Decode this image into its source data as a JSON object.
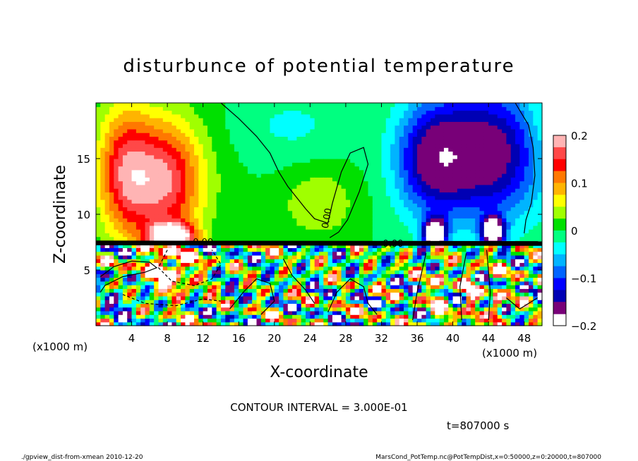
{
  "chart_data": {
    "type": "heatmap",
    "title": "disturbunce of potential temperature",
    "xlabel": "X-coordinate",
    "ylabel": "Z-coordinate",
    "x_unit_left": "(x1000 m)",
    "x_unit_right": "(x1000 m)",
    "xlim": [
      0,
      50
    ],
    "ylim": [
      0,
      20
    ],
    "x_ticks": [
      4,
      8,
      12,
      16,
      20,
      24,
      28,
      32,
      36,
      40,
      44,
      48
    ],
    "y_ticks": [
      5,
      10,
      15
    ],
    "colorbar": {
      "range": [
        -0.2,
        0.2
      ],
      "ticks": [
        {
          "value": 0.2,
          "label": "0.2"
        },
        {
          "value": 0.1,
          "label": "0.1"
        },
        {
          "value": 0.0,
          "label": "0"
        },
        {
          "value": -0.1,
          "label": "−0.1"
        },
        {
          "value": -0.2,
          "label": "−0.2"
        }
      ],
      "levels": [
        {
          "low": 0.175,
          "color": "#ffb4b4"
        },
        {
          "low": 0.15,
          "color": "#ff4848"
        },
        {
          "low": 0.125,
          "color": "#ff0000"
        },
        {
          "low": 0.1,
          "color": "#ff7800"
        },
        {
          "low": 0.075,
          "color": "#ffb400"
        },
        {
          "low": 0.05,
          "color": "#ffff00"
        },
        {
          "low": 0.025,
          "color": "#a0ff00"
        },
        {
          "low": 0.0,
          "color": "#00e000"
        },
        {
          "low": -0.025,
          "color": "#00ff80"
        },
        {
          "low": -0.05,
          "color": "#00ffff"
        },
        {
          "low": -0.075,
          "color": "#00b4ff"
        },
        {
          "low": -0.1,
          "color": "#0064ff"
        },
        {
          "low": -0.125,
          "color": "#0000ff"
        },
        {
          "low": -0.15,
          "color": "#0000b4"
        },
        {
          "low": -0.175,
          "color": "#780078"
        }
      ]
    },
    "contour_label": "0.00",
    "contour_interval_text": "CONTOUR INTERVAL = 3.000E-01",
    "time_text": "t=807000 s"
  },
  "footer": {
    "left": "./gpview_dist-from-xmean  2010-12-20",
    "right": "MarsCond_PotTemp.nc@PotTempDist,x=0:50000,z=0:20000,t=807000"
  },
  "colors": {
    "background": "#ffffff",
    "axis": "#000000",
    "missing": "#ffffff"
  }
}
